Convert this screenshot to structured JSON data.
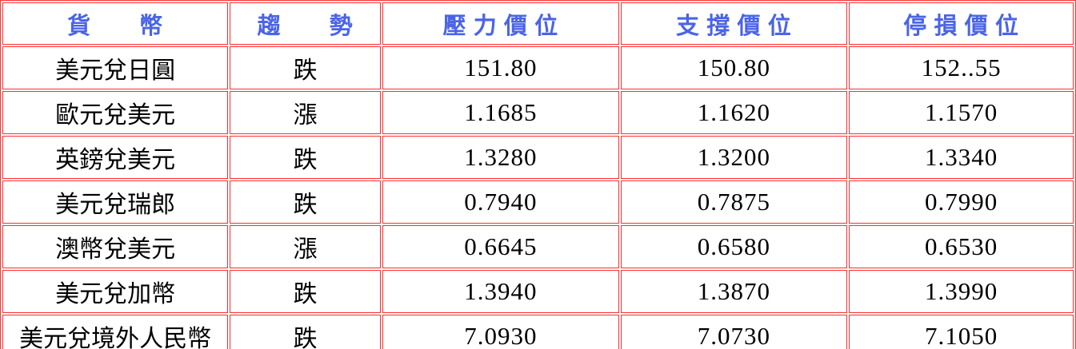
{
  "colors": {
    "table_border_red": "#fd2e2e",
    "header_text_blue": "#4a64e8",
    "body_text_black": "#000000",
    "background_white": "#ffffff"
  },
  "table": {
    "headers": {
      "currency": "貨　　幣",
      "trend": "趨　　勢",
      "pressure": "壓 力 價 位",
      "support": "支 撐 價 位",
      "stop_loss": "停 損 價 位"
    },
    "rows": [
      {
        "currency": "美元兌日圓",
        "trend": "跌",
        "pressure": "151.80",
        "support": "150.80",
        "stop_loss": "152..55"
      },
      {
        "currency": "歐元兌美元",
        "trend": "漲",
        "pressure": "1.1685",
        "support": "1.1620",
        "stop_loss": "1.1570"
      },
      {
        "currency": "英鎊兌美元",
        "trend": "跌",
        "pressure": "1.3280",
        "support": "1.3200",
        "stop_loss": "1.3340"
      },
      {
        "currency": "美元兌瑞郎",
        "trend": "跌",
        "pressure": "0.7940",
        "support": "0.7875",
        "stop_loss": "0.7990"
      },
      {
        "currency": "澳幣兌美元",
        "trend": "漲",
        "pressure": "0.6645",
        "support": "0.6580",
        "stop_loss": "0.6530"
      },
      {
        "currency": "美元兌加幣",
        "trend": "跌",
        "pressure": "1.3940",
        "support": "1.3870",
        "stop_loss": "1.3990"
      },
      {
        "currency": "美元兌境外人民幣",
        "trend": "跌",
        "pressure": "7.0930",
        "support": "7.0730",
        "stop_loss": "7.1050"
      }
    ]
  }
}
